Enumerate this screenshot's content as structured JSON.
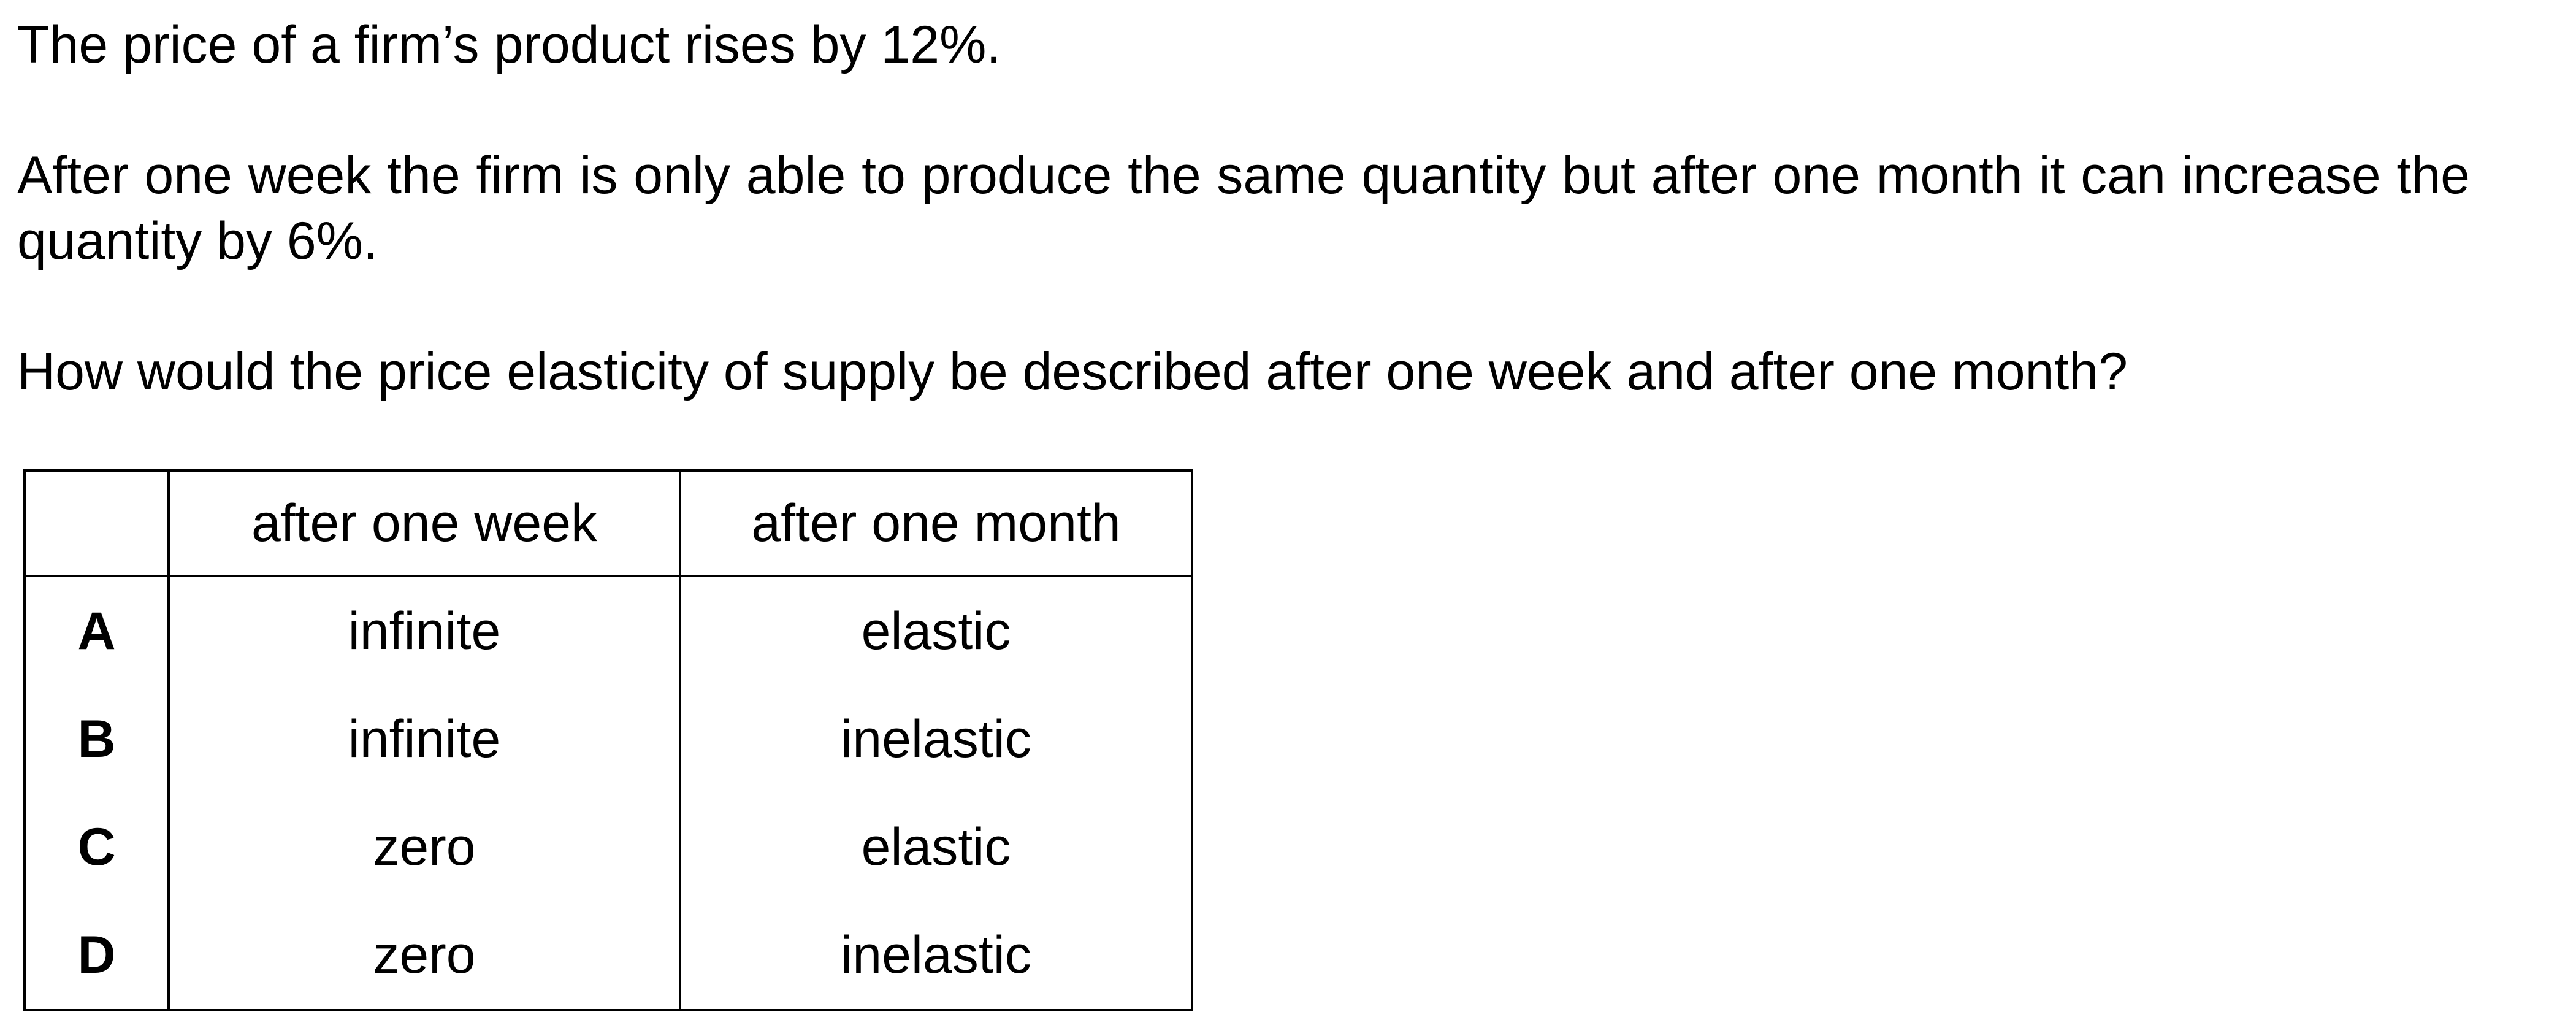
{
  "question": {
    "paragraph_1": "The price of a firm’s product rises by 12%.",
    "paragraph_2": "After one week the firm is only able to produce the same quantity but after one month it can increase the quantity by 6%.",
    "paragraph_3": "How would the price elasticity of supply be described after one week and after one month?"
  },
  "table": {
    "headers": [
      "",
      "after one week",
      "after one month"
    ],
    "rows": [
      {
        "letter": "A",
        "week": "infinite",
        "month": "elastic"
      },
      {
        "letter": "B",
        "week": "infinite",
        "month": "inelastic"
      },
      {
        "letter": "C",
        "week": "zero",
        "month": "elastic"
      },
      {
        "letter": "D",
        "week": "zero",
        "month": "inelastic"
      }
    ]
  }
}
